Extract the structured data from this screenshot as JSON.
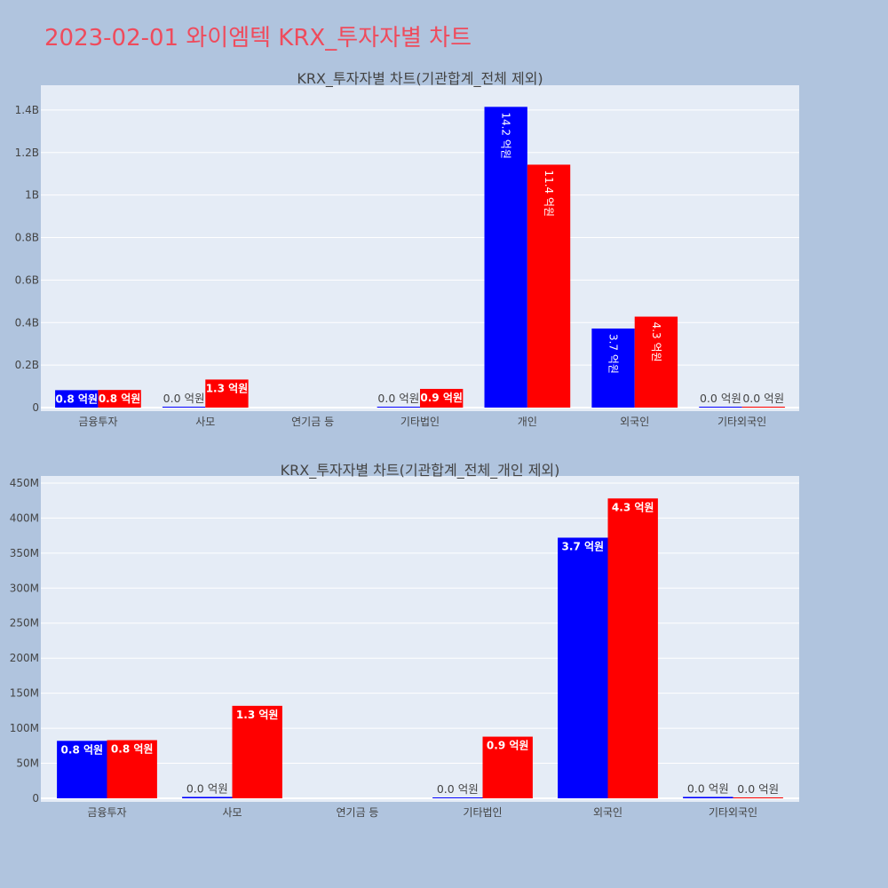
{
  "page": {
    "title": "2023-02-01 와이엠텍 KRX_투자자별 차트"
  },
  "colors": {
    "series_a": "#0000ff",
    "series_b": "#ff0000",
    "plot_bg": "#e5ecf6",
    "page_bg": "#b0c4de",
    "title": "#ef4b5c"
  },
  "chart_data": [
    {
      "type": "bar",
      "title": "KRX_투자자별 차트(기관합계_전체 제외)",
      "categories": [
        "금융투자",
        "사모",
        "연기금 등",
        "기타법인",
        "개인",
        "외국인",
        "기타외국인"
      ],
      "ylim": [
        0,
        1500000000
      ],
      "yticks": [
        0,
        200000000,
        400000000,
        600000000,
        800000000,
        1000000000,
        1200000000,
        1400000000
      ],
      "ytick_labels": [
        "0",
        "0.2B",
        "0.4B",
        "0.6B",
        "0.8B",
        "1B",
        "1.2B",
        "1.4B"
      ],
      "series": [
        {
          "values": [
            82000000,
            2000000,
            null,
            1000000,
            1415000000,
            372000000,
            2000000
          ],
          "labels": [
            "0.8 억원",
            "0.0 억원",
            "",
            "0.0 억원",
            "14.2 억원",
            "3.7 억원",
            "0.0 억원"
          ]
        },
        {
          "values": [
            83000000,
            132000000,
            null,
            88000000,
            1143000000,
            428000000,
            1000000
          ],
          "labels": [
            "0.8 억원",
            "1.3 억원",
            "",
            "0.9 억원",
            "11.4 억원",
            "4.3 억원",
            "0.0 억원"
          ]
        }
      ]
    },
    {
      "type": "bar",
      "title": "KRX_투자자별 차트(기관합계_전체_개인 제외)",
      "categories": [
        "금융투자",
        "사모",
        "연기금 등",
        "기타법인",
        "외국인",
        "기타외국인"
      ],
      "ylim": [
        0,
        455000000
      ],
      "yticks": [
        0,
        50000000,
        100000000,
        150000000,
        200000000,
        250000000,
        300000000,
        350000000,
        400000000,
        450000000
      ],
      "ytick_labels": [
        "0",
        "50M",
        "100M",
        "150M",
        "200M",
        "250M",
        "300M",
        "350M",
        "400M",
        "450M"
      ],
      "series": [
        {
          "values": [
            82000000,
            2000000,
            null,
            1000000,
            372000000,
            2000000
          ],
          "labels": [
            "0.8 억원",
            "0.0 억원",
            "",
            "0.0 억원",
            "3.7 억원",
            "0.0 억원"
          ]
        },
        {
          "values": [
            83000000,
            132000000,
            null,
            88000000,
            428000000,
            1000000
          ],
          "labels": [
            "0.8 억원",
            "1.3 억원",
            "",
            "0.9 억원",
            "4.3 억원",
            "0.0 억원"
          ]
        }
      ]
    }
  ]
}
